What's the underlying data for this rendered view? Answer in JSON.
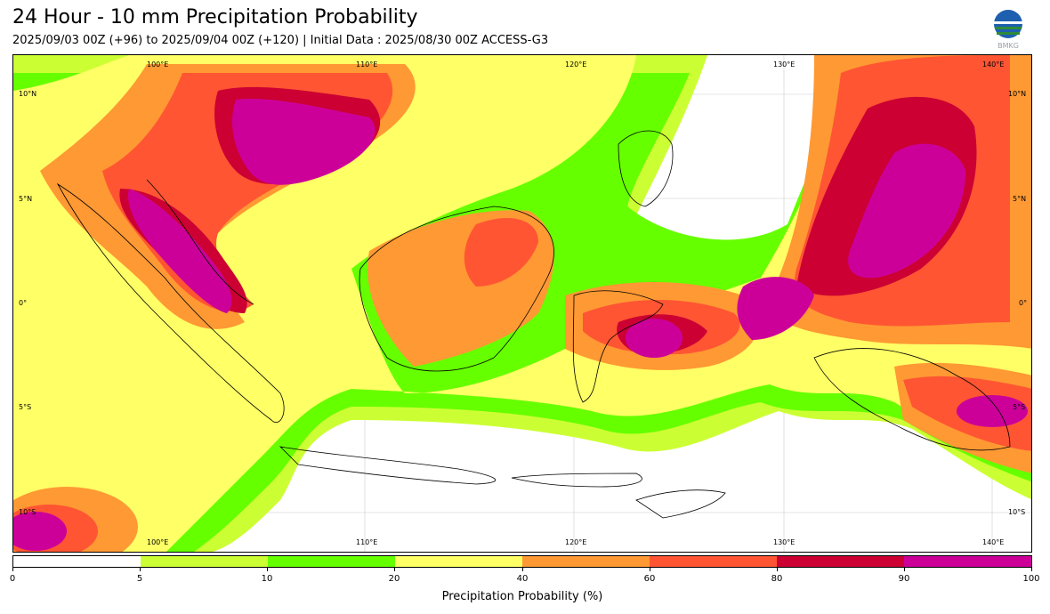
{
  "title": "24 Hour - 10 mm Precipitation Probability",
  "subtitle": "2025/09/03 00Z (+96) to 2025/09/04 00Z (+120) | Initial Data : 2025/08/30 00Z ACCESS-G3",
  "logo": {
    "text": "BMKG",
    "icon": "bmkg-globe-logo"
  },
  "map": {
    "lon_labels": [
      "100°E",
      "110°E",
      "120°E",
      "130°E",
      "140°E"
    ],
    "lat_labels": [
      "10°N",
      "5°N",
      "0°",
      "5°S",
      "10°S"
    ]
  },
  "colorbar": {
    "ticks": [
      "0",
      "5",
      "10",
      "20",
      "40",
      "60",
      "80",
      "90",
      "100"
    ],
    "colors": [
      "#ffffff",
      "#ccff33",
      "#66ff00",
      "#ffff66",
      "#ff9933",
      "#ff5533",
      "#cc0033",
      "#cc0099"
    ],
    "label": "Precipitation Probability (%)"
  }
}
